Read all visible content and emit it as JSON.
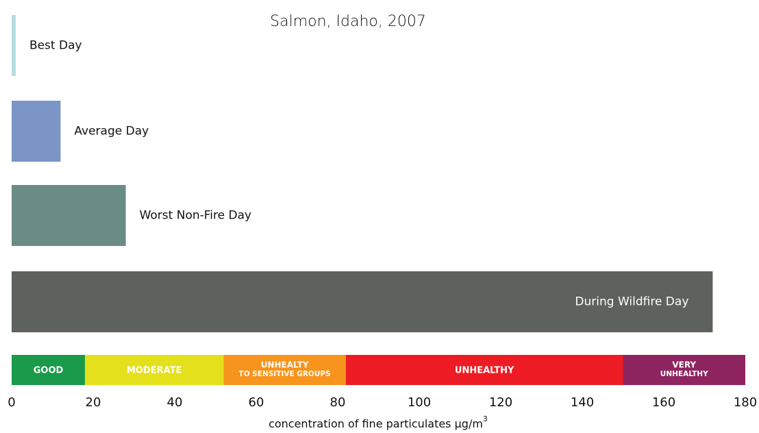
{
  "chart_data": {
    "type": "bar",
    "orientation": "horizontal",
    "title": "Salmon, Idaho, 2007",
    "categories": [
      "Best Day",
      "Average Day",
      "Worst Non-Fire Day",
      "During Wildfire Day"
    ],
    "values": [
      1,
      12,
      28,
      172
    ],
    "colors": [
      "#b6dde3",
      "#7a95c6",
      "#6a8c86",
      "#5d625e"
    ],
    "xlim": [
      0,
      180
    ],
    "xticks": [
      0,
      20,
      40,
      60,
      80,
      100,
      120,
      140,
      160,
      180
    ],
    "x_label": "concentration of fine particulates µg/m",
    "x_label_superscript": "3",
    "aqi_bands": {
      "breaks": [
        0,
        18,
        52,
        82,
        150,
        180
      ],
      "labels": [
        [
          "GOOD"
        ],
        [
          "MODERATE"
        ],
        [
          "UNHEALTY",
          "TO SENSITIVE GROUPS"
        ],
        [
          "UNHEALTHY"
        ],
        [
          "VERY",
          "UNHEALTHY"
        ]
      ],
      "colors": [
        "#1a9a4a",
        "#e4e01c",
        "#f7941d",
        "#ed1c24",
        "#8e2460"
      ]
    }
  }
}
